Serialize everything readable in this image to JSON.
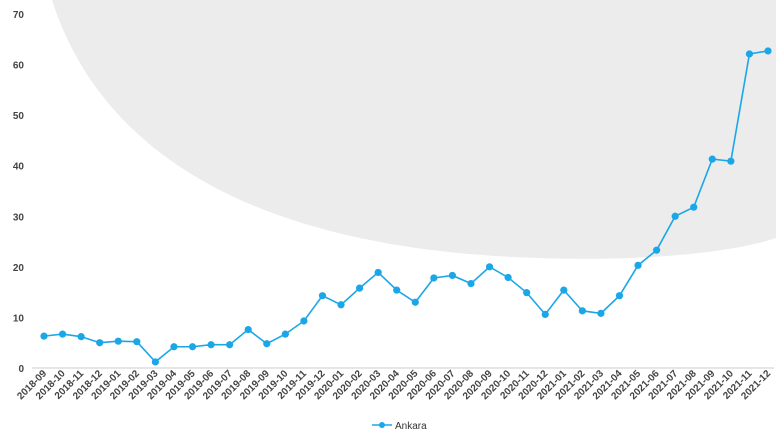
{
  "chart_data": {
    "type": "line",
    "title": "",
    "xlabel": "",
    "ylabel": "",
    "ylim": [
      0,
      70
    ],
    "yticks": [
      0,
      10,
      20,
      30,
      40,
      50,
      60,
      70
    ],
    "grid": false,
    "legend_position": "bottom",
    "categories": [
      "2018-09",
      "2018-10",
      "2018-11",
      "2018-12",
      "2019-01",
      "2019-02",
      "2019-03",
      "2019-04",
      "2019-05",
      "2019-06",
      "2019-07",
      "2019-08",
      "2019-09",
      "2019-10",
      "2019-11",
      "2019-12",
      "2020-01",
      "2020-02",
      "2020-03",
      "2020-04",
      "2020-05",
      "2020-06",
      "2020-07",
      "2020-08",
      "2020-09",
      "2020-10",
      "2020-11",
      "2020-12",
      "2021-01",
      "2021-02",
      "2021-03",
      "2021-04",
      "2021-05",
      "2021-06",
      "2021-07",
      "2021-08",
      "2021-09",
      "2021-10",
      "2021-11",
      "2021-12"
    ],
    "series": [
      {
        "name": "Ankara",
        "color": "#1aa7e8",
        "values": [
          6.3,
          6.7,
          6.2,
          5.0,
          5.3,
          5.2,
          1.2,
          4.2,
          4.2,
          4.6,
          4.6,
          7.6,
          4.8,
          6.7,
          9.3,
          14.3,
          12.5,
          15.8,
          18.9,
          15.4,
          13.0,
          17.8,
          18.3,
          16.7,
          20.0,
          17.9,
          14.9,
          10.6,
          15.4,
          11.3,
          10.8,
          14.3,
          20.3,
          23.3,
          30.0,
          31.8,
          41.3,
          40.9,
          62.1,
          62.7
        ]
      }
    ]
  },
  "colors": {
    "background_shape": "#ececec",
    "axis_line": "#cccccc"
  }
}
